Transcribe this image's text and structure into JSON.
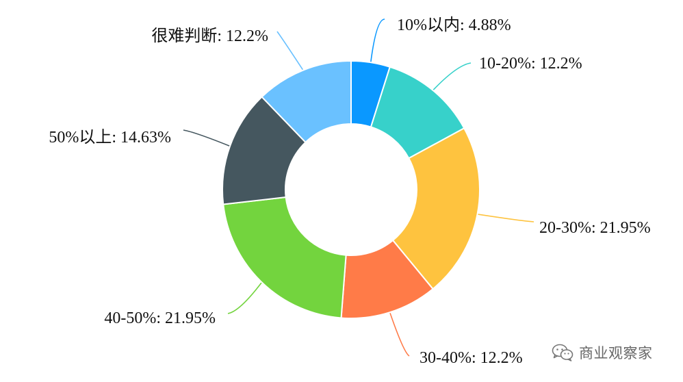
{
  "chart_data": {
    "type": "pie",
    "variant": "donut",
    "slices": [
      {
        "label": "10%以内",
        "value": 4.88,
        "display": "10%以内: 4.88%",
        "color": "#0a98ff"
      },
      {
        "label": "10-20%",
        "value": 12.2,
        "display": "10-20%: 12.2%",
        "color": "#37d1ca"
      },
      {
        "label": "20-30%",
        "value": 21.95,
        "display": "20-30%: 21.95%",
        "color": "#fec33f"
      },
      {
        "label": "30-40%",
        "value": 12.2,
        "display": "30-40%: 12.2%",
        "color": "#ff7b48"
      },
      {
        "label": "40-50%",
        "value": 21.95,
        "display": "40-50%: 21.95%",
        "color": "#73d43e"
      },
      {
        "label": "50%以上",
        "value": 14.63,
        "display": "50%以上: 14.63%",
        "color": "#45575f"
      },
      {
        "label": "很难判断",
        "value": 12.2,
        "display": "很难判断: 12.2%",
        "color": "#6ac1ff"
      }
    ],
    "start_angle": "top (12 o'clock)",
    "direction": "clockwise",
    "legend": "none"
  },
  "watermark": {
    "icon": "wechat-icon",
    "text": "商业观察家"
  }
}
